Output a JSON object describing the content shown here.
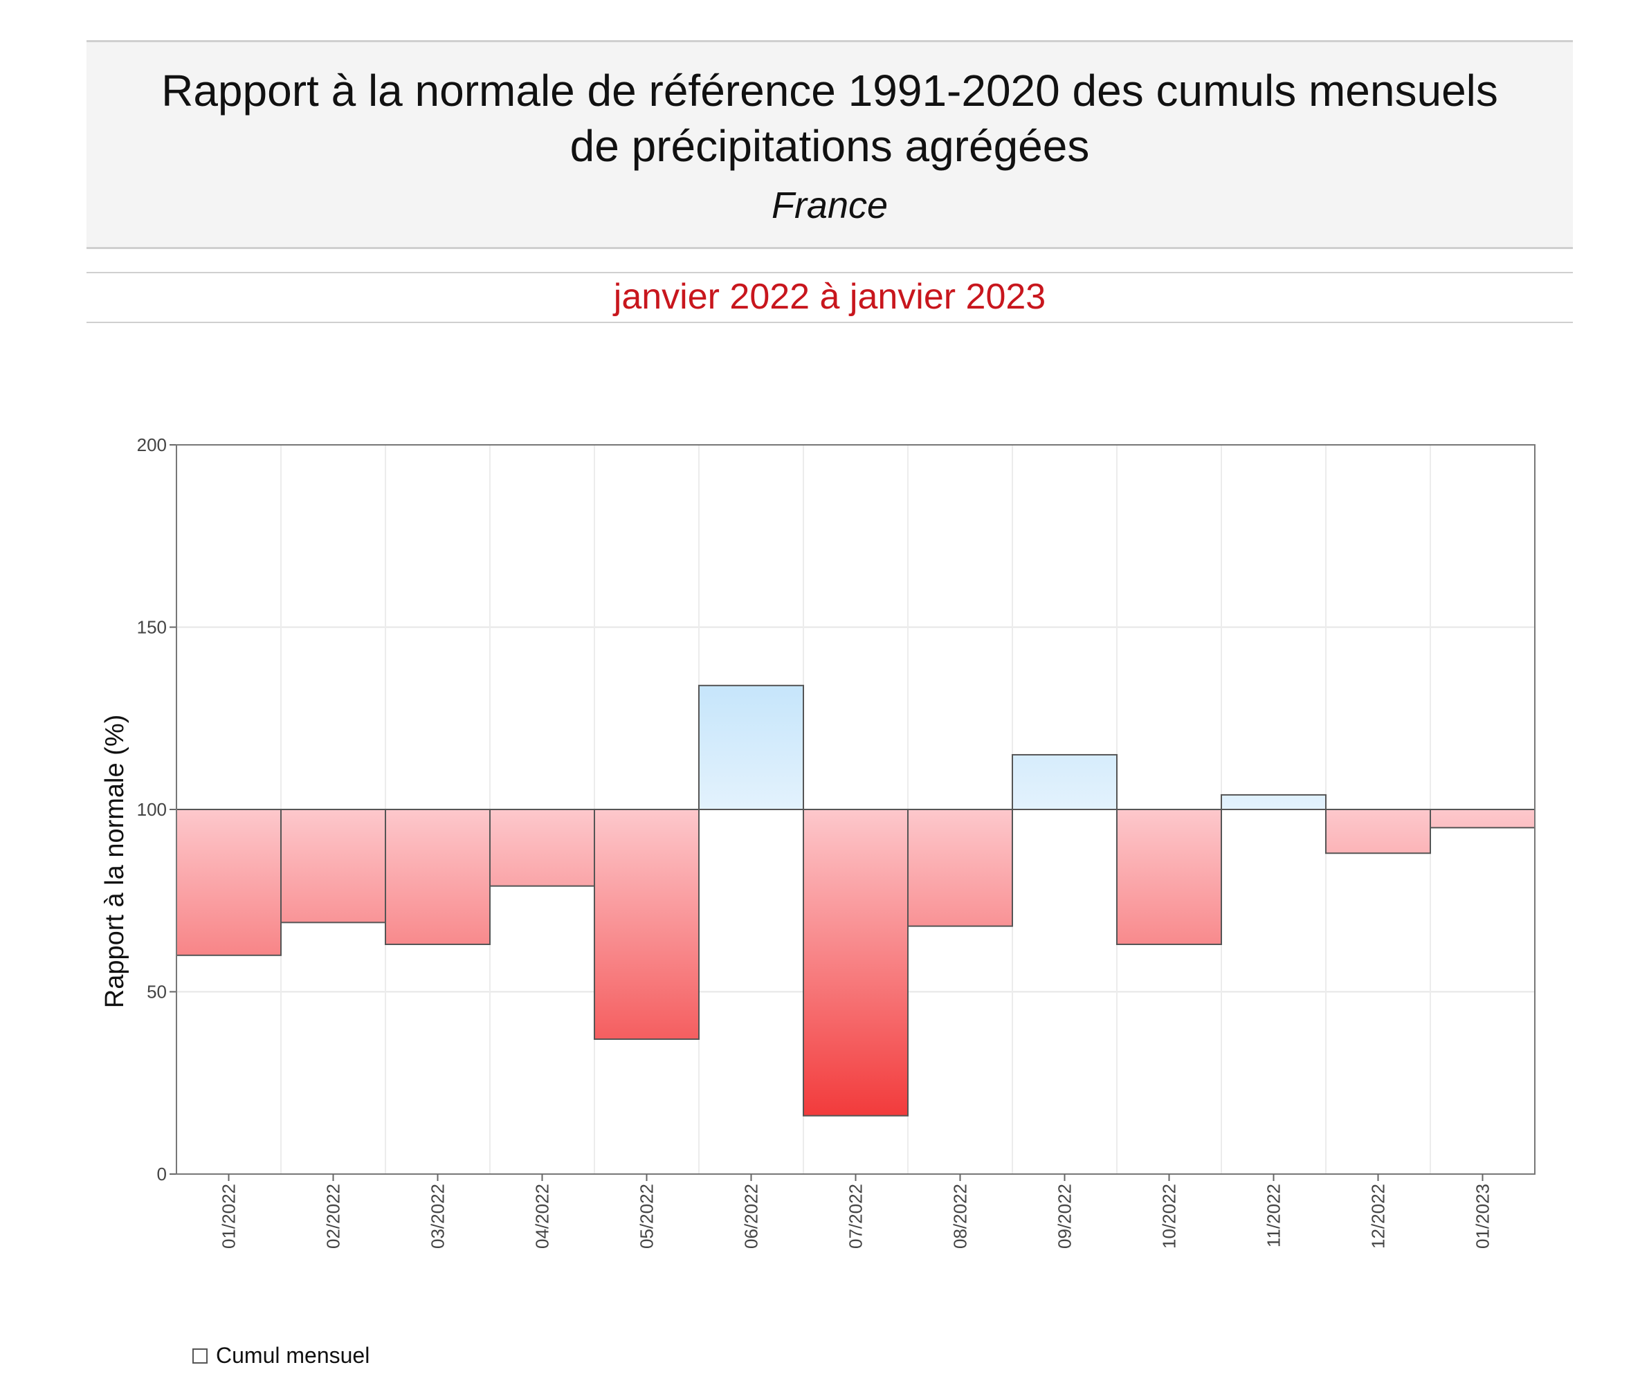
{
  "header": {
    "title_line1": "Rapport à la normale de référence 1991-2020 des cumuls mensuels",
    "title_line2": "de précipitations agrégées",
    "subtitle": "France",
    "period": "janvier 2022 à janvier 2023"
  },
  "legend": {
    "label": "Cumul mensuel"
  },
  "colors": {
    "deficit": "#f02020",
    "deficit_light": "#fdc8cc",
    "excess": "#8ecdf6",
    "excess_light": "#e3f2fd",
    "period_text": "#c8161d"
  },
  "chart_data": {
    "type": "bar",
    "baseline": 100,
    "categories": [
      "01/2022",
      "02/2022",
      "03/2022",
      "04/2022",
      "05/2022",
      "06/2022",
      "07/2022",
      "08/2022",
      "09/2022",
      "10/2022",
      "11/2022",
      "12/2022",
      "01/2023"
    ],
    "values": [
      60,
      69,
      63,
      79,
      37,
      134,
      16,
      68,
      115,
      63,
      104,
      88,
      95
    ],
    "ylabel": "Rapport à la normale (%)",
    "ylim": [
      0,
      200
    ],
    "yticks": [
      0,
      50,
      100,
      150,
      200
    ],
    "grid": true
  }
}
